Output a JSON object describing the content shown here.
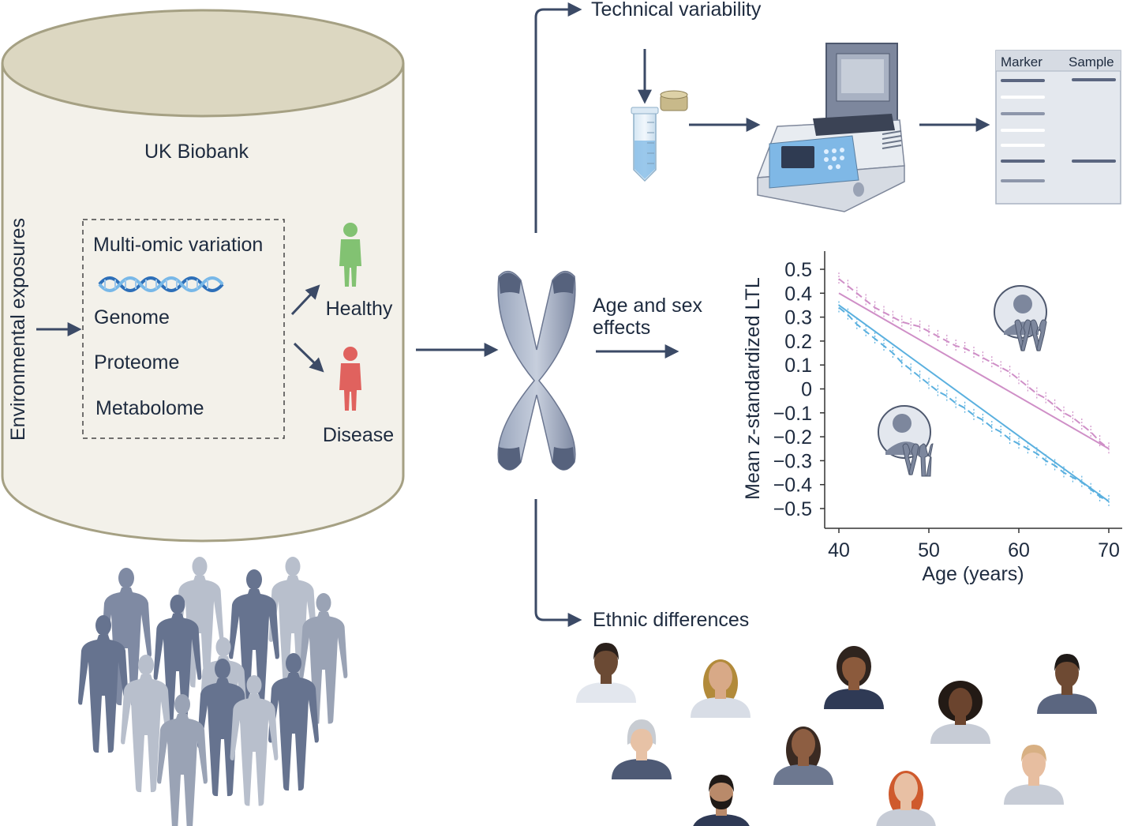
{
  "biobank": {
    "title": "UK Biobank",
    "exposures": "Environmental exposures",
    "omics": {
      "heading": "Multi-omic variation",
      "items": [
        "Genome",
        "Proteome",
        "Metabolome"
      ]
    },
    "outcomes": {
      "healthy": "Healthy",
      "disease": "Disease"
    }
  },
  "branches": {
    "technical": "Technical variability",
    "age_sex_line1": "Age and sex",
    "age_sex_line2": "effects",
    "ethnic": "Ethnic differences"
  },
  "gel": {
    "marker": "Marker",
    "sample": "Sample"
  },
  "colors": {
    "arrow": "#3b4a66",
    "cylinder_fill": "#f3f1ea",
    "cylinder_stroke": "#a5a083",
    "healthy": "#82c272",
    "disease": "#e0625e",
    "female_series": "#cf8fc7",
    "male_series": "#5ab0df"
  },
  "icons": [
    "dna-helix-icon",
    "healthy-person-icon",
    "disease-person-icon",
    "chromosome-icon",
    "test-tube-icon",
    "pcr-machine-icon",
    "gel-plate-icon",
    "female-xx-icon",
    "male-xy-icon",
    "crowd-silhouettes",
    "diverse-faces"
  ],
  "chart_data": {
    "type": "line",
    "xlabel": "Age (years)",
    "ylabel_prefix": "Mean ",
    "ylabel_italic": "z",
    "ylabel_suffix": "-standardized LTL",
    "xlim": [
      40,
      70
    ],
    "ylim": [
      -0.55,
      0.55
    ],
    "xticks": [
      40,
      50,
      60,
      70
    ],
    "yticks": [
      0.5,
      0.4,
      0.3,
      0.2,
      0.1,
      0,
      -0.1,
      -0.2,
      -0.3,
      -0.4,
      -0.5
    ],
    "ytick_labels": [
      "0.5",
      "0.4",
      "0.3",
      "0.2",
      "0.1",
      "0",
      "−0.1",
      "−0.2",
      "−0.3",
      "−0.4",
      "−0.5"
    ],
    "x": [
      40,
      41,
      42,
      43,
      44,
      45,
      46,
      47,
      48,
      49,
      50,
      51,
      52,
      53,
      54,
      55,
      56,
      57,
      58,
      59,
      60,
      61,
      62,
      63,
      64,
      65,
      66,
      67,
      68,
      69,
      70
    ],
    "series": [
      {
        "values": [
          0.46,
          0.43,
          0.4,
          0.37,
          0.34,
          0.32,
          0.3,
          0.28,
          0.27,
          0.26,
          0.24,
          0.22,
          0.2,
          0.18,
          0.17,
          0.15,
          0.13,
          0.11,
          0.09,
          0.07,
          0.04,
          0.01,
          -0.02,
          -0.04,
          -0.07,
          -0.1,
          -0.12,
          -0.15,
          -0.18,
          -0.22,
          -0.25
        ],
        "fit": [
          0.4,
          -0.25
        ]
      },
      {
        "values": [
          0.34,
          0.31,
          0.27,
          0.24,
          0.21,
          0.18,
          0.15,
          0.11,
          0.08,
          0.05,
          0.02,
          -0.01,
          -0.03,
          -0.06,
          -0.08,
          -0.11,
          -0.13,
          -0.16,
          -0.18,
          -0.21,
          -0.23,
          -0.25,
          -0.27,
          -0.3,
          -0.32,
          -0.35,
          -0.37,
          -0.39,
          -0.42,
          -0.45,
          -0.47
        ],
        "fit": [
          0.35,
          -0.47
        ]
      }
    ]
  }
}
